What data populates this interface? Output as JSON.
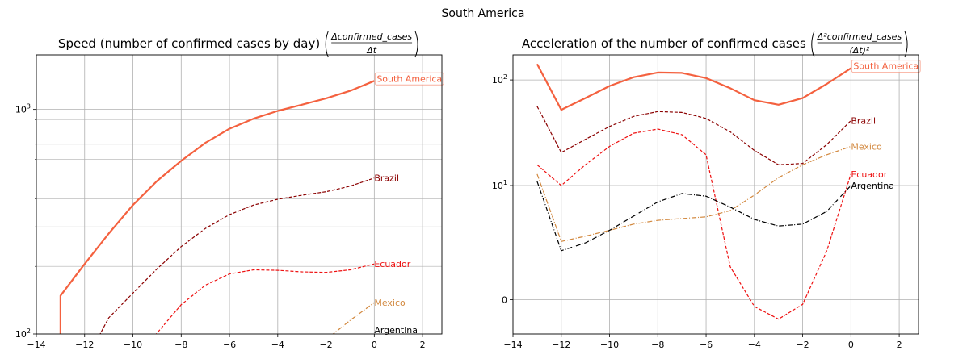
{
  "figure": {
    "title": "South America"
  },
  "chart_data": [
    {
      "type": "line",
      "title_text": "Speed (number of confirmed cases by day)",
      "title_frac_num": "Δconfirmed_cases",
      "title_frac_den": "Δt",
      "yscale": "log",
      "xlim": [
        -14,
        2.8
      ],
      "ylim": [
        100,
        1750
      ],
      "xticks": [
        -14,
        -12,
        -10,
        -8,
        -6,
        -4,
        -2,
        0,
        2
      ],
      "xtick_labels": [
        "−14",
        "−12",
        "−10",
        "−8",
        "−6",
        "−4",
        "−2",
        "0",
        "2"
      ],
      "yticks_major": [
        {
          "value": 100,
          "base": "10",
          "exp": "2"
        },
        {
          "value": 1000,
          "base": "10",
          "exp": "3"
        }
      ],
      "grid": true,
      "series": [
        {
          "name": "South America",
          "color": "#f4613f",
          "dash": "",
          "width": 2.2,
          "boxed": true,
          "x": [
            -13,
            -13,
            -12,
            -11,
            -10,
            -9,
            -8,
            -7,
            -6,
            -5,
            -4,
            -3,
            -2,
            -1,
            0
          ],
          "y": [
            95,
            148,
            205,
            280,
            375,
            480,
            590,
            710,
            820,
            910,
            985,
            1050,
            1120,
            1210,
            1340
          ]
        },
        {
          "name": "Brazil",
          "color": "#8b0000",
          "dash": "4,2",
          "width": 1.2,
          "boxed": false,
          "x": [
            -11.4,
            -11,
            -10,
            -9,
            -8,
            -7,
            -6,
            -5,
            -4,
            -3,
            -2,
            -1,
            0
          ],
          "y": [
            98,
            118,
            152,
            195,
            245,
            295,
            340,
            375,
            398,
            415,
            430,
            455,
            495
          ]
        },
        {
          "name": "Ecuador",
          "color": "#ee1111",
          "dash": "4,2",
          "width": 1.2,
          "boxed": false,
          "x": [
            -9.1,
            -8,
            -7,
            -6,
            -5,
            -4,
            -3,
            -2,
            -1,
            0
          ],
          "y": [
            98,
            135,
            165,
            185,
            193,
            192,
            189,
            188,
            193,
            205
          ]
        },
        {
          "name": "Mexico",
          "color": "#d2883e",
          "dash": "6,2,1,2",
          "width": 1.2,
          "boxed": false,
          "x": [
            -1.8,
            -1,
            0
          ],
          "y": [
            98,
            115,
            138
          ]
        },
        {
          "name": "Argentina",
          "color": "#000000",
          "dash": "6,2,1,2",
          "width": 1.2,
          "boxed": false,
          "x": [
            0
          ],
          "y": [
            100
          ]
        }
      ]
    },
    {
      "type": "line",
      "title_text": "Acceleration of the number of confirmed cases",
      "title_frac_num": "Δ²confirmed_cases",
      "title_frac_den": "(Δt)²",
      "yscale": "symlog",
      "xlim": [
        -14,
        2.8
      ],
      "ylim": [
        -1.05,
        170
      ],
      "xticks": [
        -14,
        -12,
        -10,
        -8,
        -6,
        -4,
        -2,
        0,
        2
      ],
      "xtick_labels": [
        "−14",
        "−12",
        "−10",
        "−8",
        "−6",
        "−4",
        "−2",
        "0",
        "2"
      ],
      "yticks_major": [
        {
          "value": 0,
          "base": "0",
          "exp": ""
        },
        {
          "value": 10,
          "base": "10",
          "exp": "1"
        },
        {
          "value": 100,
          "base": "10",
          "exp": "2"
        }
      ],
      "grid": true,
      "series": [
        {
          "name": "South America",
          "color": "#f4613f",
          "dash": "",
          "width": 2.2,
          "boxed": true,
          "x": [
            -13,
            -12,
            -11,
            -10,
            -9,
            -8,
            -7,
            -6,
            -5,
            -4,
            -3,
            -2,
            -1,
            0
          ],
          "y": [
            140,
            53,
            68,
            88,
            106,
            117,
            116,
            104,
            84,
            65,
            59,
            68,
            92,
            128
          ]
        },
        {
          "name": "Brazil",
          "color": "#8b0000",
          "dash": "4,2",
          "width": 1.2,
          "boxed": false,
          "x": [
            -13,
            -12,
            -11,
            -10,
            -9,
            -8,
            -7,
            -6,
            -5,
            -4,
            -3,
            -2,
            -1,
            0
          ],
          "y": [
            57,
            21,
            28,
            37,
            46,
            51,
            50,
            44,
            33,
            22,
            16,
            16.5,
            25,
            42
          ]
        },
        {
          "name": "Ecuador",
          "color": "#ee1111",
          "dash": "4,2",
          "width": 1.2,
          "boxed": false,
          "x": [
            -13,
            -12,
            -11,
            -10,
            -9,
            -8,
            -7,
            -6,
            -5,
            -4,
            -3,
            -2,
            -1,
            0
          ],
          "y": [
            16,
            10,
            16,
            24,
            32,
            35,
            31,
            20,
            1,
            -0.15,
            -0.5,
            -0.1,
            1.8,
            13
          ]
        },
        {
          "name": "Mexico",
          "color": "#d2883e",
          "dash": "6,2,1,2",
          "width": 1.2,
          "boxed": false,
          "x": [
            -13,
            -12,
            -11,
            -10,
            -9,
            -8,
            -7,
            -6,
            -5,
            -4,
            -3,
            -2,
            -1,
            0
          ],
          "y": [
            13,
            2.4,
            2.8,
            3.3,
            3.9,
            4.3,
            4.5,
            4.7,
            5.5,
            8,
            12,
            16,
            20,
            24
          ]
        },
        {
          "name": "Argentina",
          "color": "#000000",
          "dash": "6,2,1,2",
          "width": 1.2,
          "boxed": false,
          "x": [
            -13,
            -12,
            -11,
            -10,
            -9,
            -8,
            -7,
            -6,
            -5,
            -4,
            -3,
            -2,
            -1,
            0
          ],
          "y": [
            11,
            1.8,
            2.3,
            3.3,
            4.8,
            6.8,
            8.3,
            7.8,
            6,
            4.4,
            3.7,
            3.9,
            5.4,
            10
          ]
        }
      ]
    }
  ]
}
